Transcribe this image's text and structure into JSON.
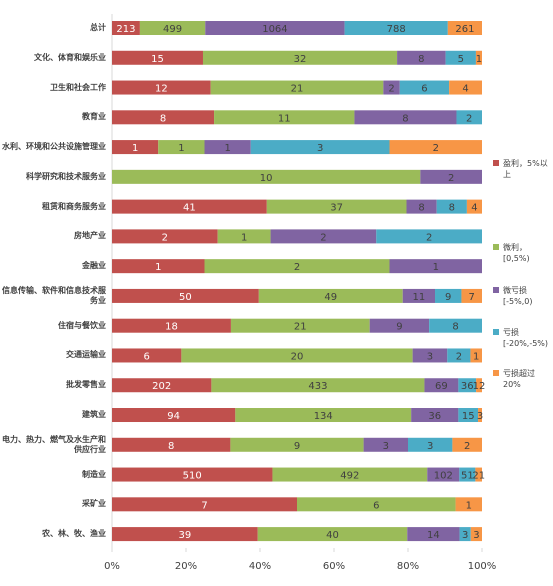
{
  "chart_data": {
    "type": "bar",
    "orientation": "horizontal",
    "stacked": "percent",
    "categories": [
      "总计",
      "文化、体育和娱乐业",
      "卫生和社会工作",
      "教育业",
      "水利、环境和公共设施管理业",
      "科学研究和技术服务业",
      "租赁和商务服务业",
      "房地产业",
      "金融业",
      "信息传输、软件和信息技术服务业",
      "住宿与餐饮业",
      "交通运输业",
      "批发零售业",
      "建筑业",
      "电力、热力、燃气及水生产和供应行业",
      "制造业",
      "采矿业",
      "农、林、牧、渔业"
    ],
    "series": [
      {
        "name": "盈利，5%以上",
        "color": "#c0504d",
        "values": [
          213,
          15,
          12,
          8,
          1,
          null,
          41,
          2,
          1,
          50,
          18,
          6,
          202,
          94,
          8,
          510,
          7,
          39
        ]
      },
      {
        "name": "微利，[0,5%)",
        "color": "#9bbb59",
        "values": [
          499,
          32,
          21,
          11,
          1,
          10,
          37,
          1,
          2,
          49,
          21,
          20,
          433,
          134,
          9,
          492,
          6,
          40
        ]
      },
      {
        "name": "微亏损[-5%,0)",
        "color": "#8064a2",
        "values": [
          1064,
          8,
          2,
          8,
          1,
          2,
          8,
          2,
          1,
          11,
          9,
          3,
          69,
          36,
          3,
          102,
          null,
          14
        ]
      },
      {
        "name": "亏损[-20%,-5%)",
        "color": "#4bacc6",
        "values": [
          788,
          5,
          6,
          2,
          3,
          null,
          8,
          2,
          null,
          9,
          8,
          2,
          36,
          15,
          3,
          51,
          null,
          3
        ]
      },
      {
        "name": "亏损超过20%",
        "color": "#f79646",
        "values": [
          261,
          1,
          4,
          null,
          2,
          null,
          4,
          null,
          null,
          7,
          null,
          1,
          12,
          3,
          2,
          21,
          1,
          3
        ]
      }
    ],
    "xlim": [
      0,
      100
    ],
    "xticks": [
      {
        "value": 0,
        "label": "0%"
      },
      {
        "value": 20,
        "label": "20%"
      },
      {
        "value": 40,
        "label": "40%"
      },
      {
        "value": 60,
        "label": "60%"
      },
      {
        "value": 80,
        "label": "80%"
      },
      {
        "value": 100,
        "label": "100%"
      }
    ],
    "grid": false,
    "legend": "right"
  }
}
